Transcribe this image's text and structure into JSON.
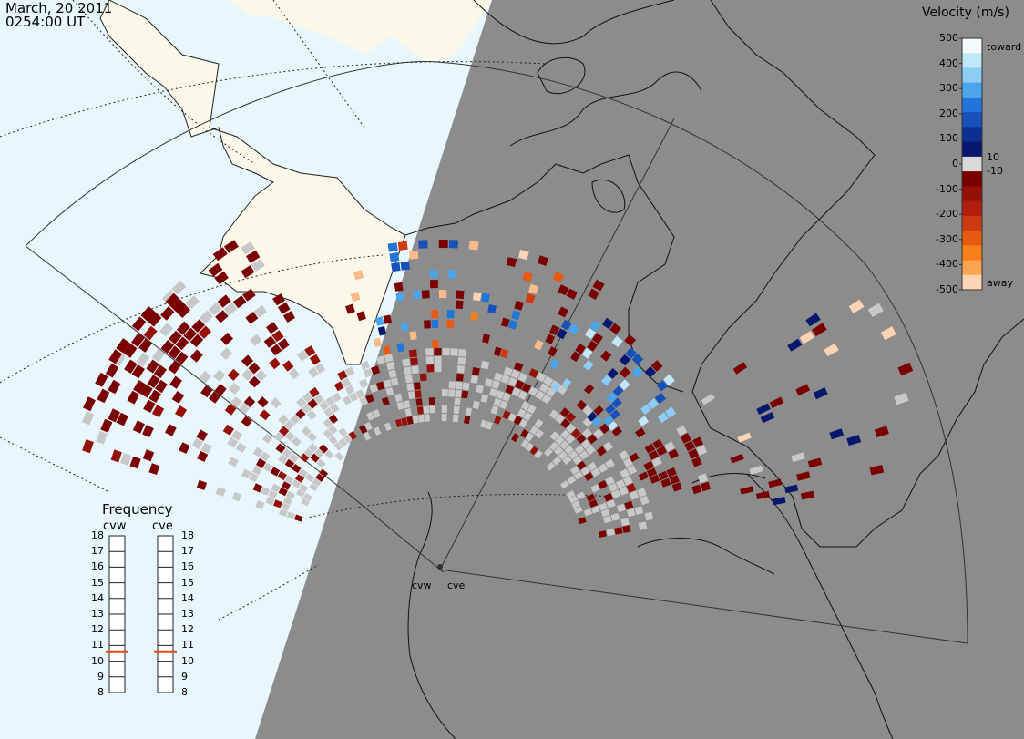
{
  "timestamp": {
    "date": "March, 20 2011",
    "time": "0254:00 UT"
  },
  "colorbar": {
    "title": "Velocity (m/s)",
    "ticks": [
      "500",
      "400",
      "300",
      "200",
      "100",
      "0",
      "-100",
      "-200",
      "-300",
      "-400",
      "-500"
    ],
    "label_toward": "toward",
    "label_away": "away",
    "small_pos": "10",
    "small_neg": "-10",
    "colors": [
      "#f4fbfe",
      "#c2e7fb",
      "#8ccdf5",
      "#4ba5ec",
      "#2075d8",
      "#1650b8",
      "#0d2f92",
      "#08186e",
      "#d9d9d9",
      "#7a0000",
      "#951006",
      "#b11f0c",
      "#cf3a10",
      "#e75a12",
      "#f77f18",
      "#fca34e",
      "#fdd4b3"
    ]
  },
  "frequency": {
    "title": "Frequency",
    "radars": [
      "cvw",
      "cve"
    ],
    "scale": [
      "18",
      "17",
      "16",
      "15",
      "14",
      "13",
      "12",
      "11",
      "10",
      "9",
      "8"
    ],
    "values_mhz": [
      10.6,
      10.6
    ]
  },
  "sites": [
    {
      "name": "cvw"
    },
    {
      "name": "cve"
    }
  ],
  "colors": {
    "night": "#8c8c8c",
    "day_ocean": "#e8f6fd",
    "day_land": "#fbf8ea",
    "ground_scatter": "#c8c8c8",
    "marker": "#e04a1a"
  }
}
